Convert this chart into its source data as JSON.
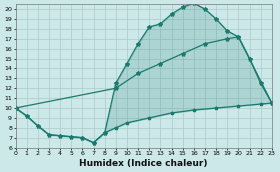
{
  "line1_x": [
    0,
    1,
    2,
    3,
    4,
    5,
    6,
    7,
    8,
    9,
    10,
    11,
    12,
    13,
    14,
    15,
    16,
    17,
    18,
    19,
    20,
    21,
    22,
    23
  ],
  "line1_y": [
    10,
    9.2,
    8.2,
    7.3,
    7.2,
    7.1,
    7.0,
    6.5,
    7.5,
    12.5,
    14.5,
    16.5,
    18.2,
    18.5,
    19.5,
    20.2,
    20.6,
    20.0,
    19.0,
    17.8,
    17.2,
    15.0,
    12.5,
    10.5
  ],
  "line2_x": [
    0,
    9,
    11,
    13,
    15,
    17,
    19,
    20,
    23
  ],
  "line2_y": [
    10,
    12.0,
    13.5,
    14.5,
    15.5,
    16.5,
    17.0,
    17.2,
    10.5
  ],
  "line3_x": [
    0,
    1,
    2,
    3,
    4,
    5,
    6,
    7,
    8,
    9,
    10,
    12,
    14,
    16,
    18,
    20,
    22,
    23
  ],
  "line3_y": [
    10,
    9.2,
    8.2,
    7.3,
    7.2,
    7.1,
    7.0,
    6.5,
    7.5,
    8.0,
    8.5,
    9.0,
    9.5,
    9.8,
    10.0,
    10.2,
    10.4,
    10.5
  ],
  "color": "#1a7a6e",
  "bg_color": "#cce8e8",
  "grid_color": "#aacccc",
  "xlabel": "Humidex (Indice chaleur)",
  "xlim": [
    0,
    23
  ],
  "ylim": [
    6,
    20.5
  ],
  "yticks": [
    6,
    7,
    8,
    9,
    10,
    11,
    12,
    13,
    14,
    15,
    16,
    17,
    18,
    19,
    20
  ],
  "xticks": [
    0,
    1,
    2,
    3,
    4,
    5,
    6,
    7,
    8,
    9,
    10,
    11,
    12,
    13,
    14,
    15,
    16,
    17,
    18,
    19,
    20,
    21,
    22,
    23
  ],
  "tick_fontsize": 4.5,
  "xlabel_fontsize": 6.5
}
